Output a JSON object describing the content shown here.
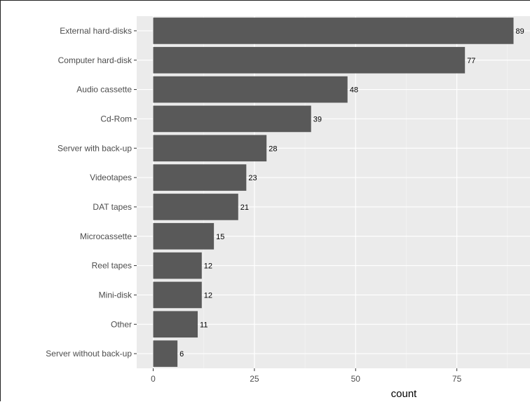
{
  "chart_data": {
    "type": "bar",
    "orientation": "horizontal",
    "categories": [
      "External hard-disks",
      "Computer hard-disk",
      "Audio cassette",
      "Cd-Rom",
      "Server with back-up",
      "Videotapes",
      "DAT tapes",
      "Microcassette",
      "Reel tapes",
      "Mini-disk",
      "Other",
      "Server without back-up"
    ],
    "values": [
      89,
      77,
      48,
      39,
      28,
      23,
      21,
      15,
      12,
      12,
      11,
      6
    ],
    "data_labels": [
      "89",
      "77",
      "48",
      "39",
      "28",
      "23",
      "21",
      "15",
      "12",
      "12",
      "11",
      "6"
    ],
    "xlabel": "count",
    "ylabel": "",
    "xlim": [
      0,
      93
    ],
    "x_ticks": [
      0,
      25,
      50,
      75
    ],
    "x_tick_labels": [
      "0",
      "25",
      "50",
      "75"
    ],
    "grid": true,
    "colors": {
      "bar": "#595959",
      "panel_background": "#ebebeb",
      "grid_major": "#ffffff",
      "grid_minor": "#f4f4f4",
      "axis_text": "#4d4d4d",
      "axis_title": "#000000",
      "tick": "#333333"
    }
  }
}
